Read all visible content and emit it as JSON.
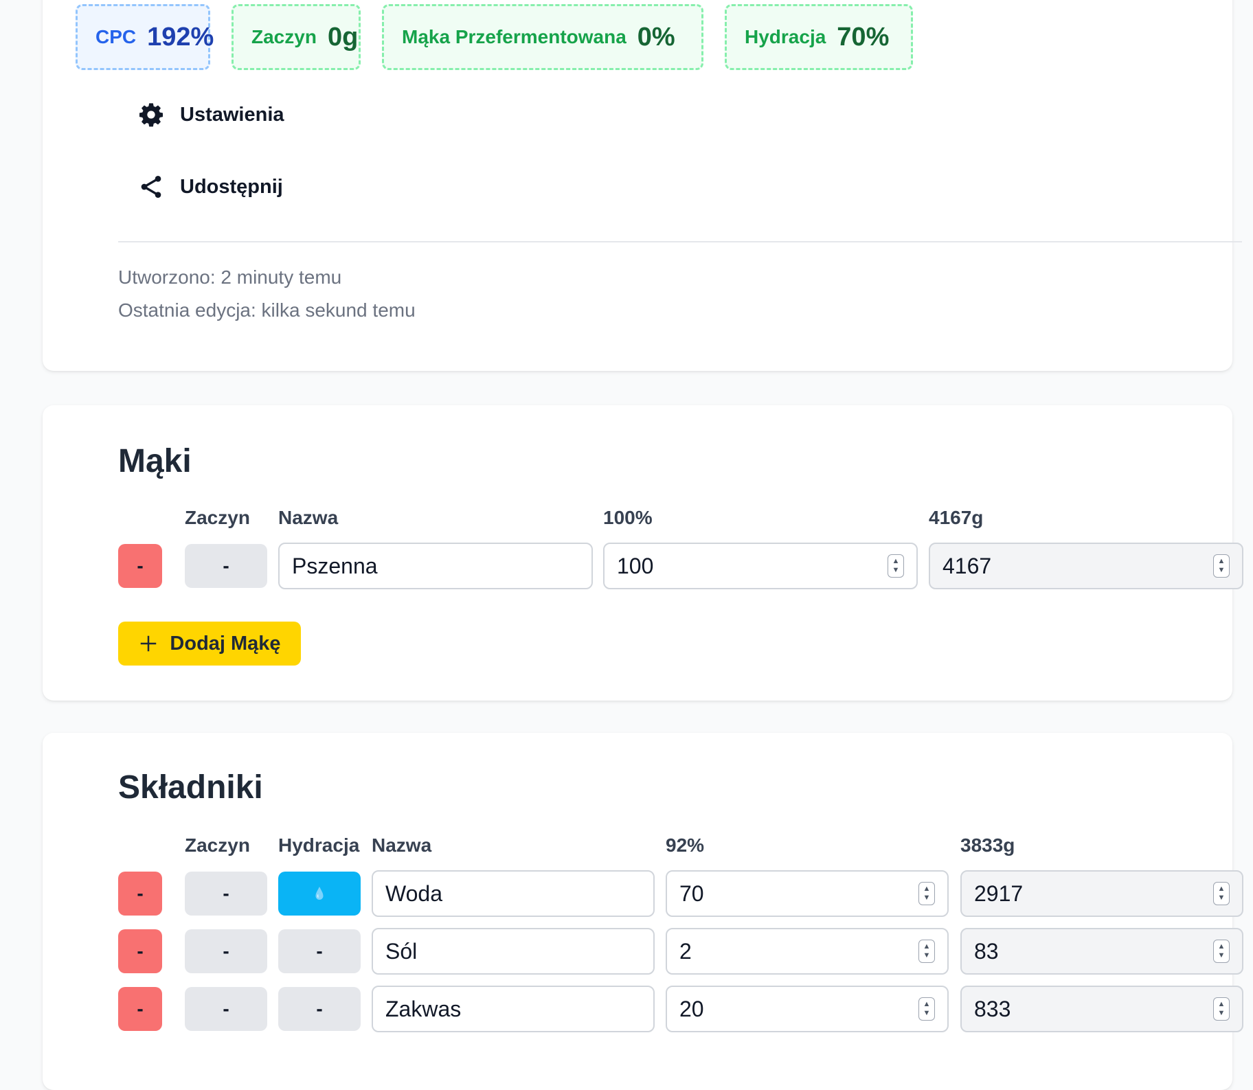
{
  "stats": [
    {
      "label": "CPC",
      "value": "192%",
      "color": "#2563eb"
    },
    {
      "label": "Zaczyn",
      "value": "0g",
      "color": "#16a34a"
    },
    {
      "label": "Mąka Przefermentowana",
      "value": "0%",
      "color": "#16a34a"
    },
    {
      "label": "Hydracja",
      "value": "70%",
      "color": "#16a34a"
    }
  ],
  "menu": {
    "settings": {
      "label": "Ustawienia",
      "icon": "gear-icon"
    },
    "share": {
      "label": "Udostępnij",
      "icon": "share-icon"
    }
  },
  "meta": {
    "created": "Utworzono: 2 minuty temu",
    "edited": "Ostatnia edycja: kilka sekund temu"
  },
  "flours": {
    "title": "Mąki",
    "headers": {
      "starter": "Zaczyn",
      "name": "Nazwa",
      "percent": "100%",
      "grams": "4167g"
    },
    "rows": [
      {
        "remove": "-",
        "starter": "-",
        "name": "Pszenna",
        "percent": "100",
        "grams": "4167"
      }
    ],
    "add_label": "Dodaj Mąkę"
  },
  "ingredients": {
    "title": "Składniki",
    "headers": {
      "starter": "Zaczyn",
      "hydration": "Hydracja",
      "name": "Nazwa",
      "percent": "92%",
      "grams": "3833g"
    },
    "rows": [
      {
        "remove": "-",
        "starter": "-",
        "hydration": "water-drop-icon",
        "name": "Woda",
        "percent": "70",
        "grams": "2917"
      },
      {
        "remove": "-",
        "starter": "-",
        "hydration": "-",
        "name": "Sól",
        "percent": "2",
        "grams": "83"
      },
      {
        "remove": "-",
        "starter": "-",
        "hydration": "-",
        "name": "Zakwas",
        "percent": "20",
        "grams": "833"
      }
    ]
  },
  "colors": {
    "remove": "#f87171",
    "neutral": "#e5e7eb",
    "hydration_active": "#0ab4f5",
    "add_button": "#ffd500"
  }
}
